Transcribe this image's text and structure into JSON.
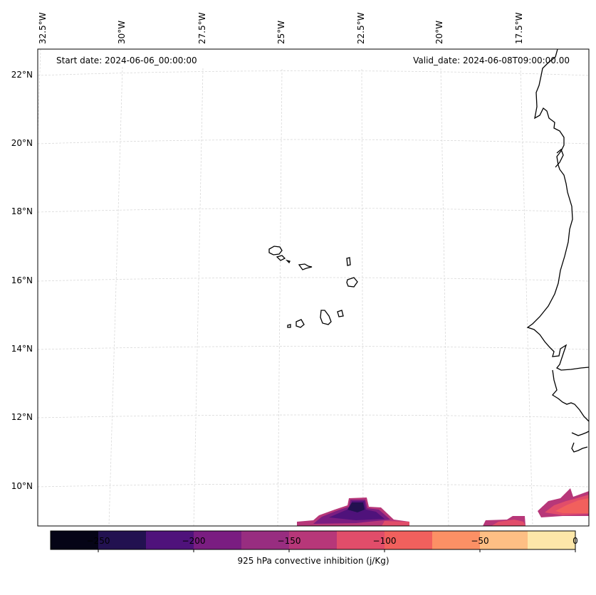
{
  "map": {
    "start_date": "Start date: 2024-06-06_00:00:00",
    "valid_date": "Valid_date: 2024-06-08T09:00:00.00",
    "lon_labels": [
      "32.5°W",
      "30°W",
      "27.5°W",
      "25°W",
      "22.5°W",
      "20°W",
      "17.5°W"
    ],
    "lat_labels": [
      "22°N",
      "20°N",
      "18°N",
      "16°N",
      "14°N",
      "12°N",
      "10°N"
    ],
    "land_line_color": "#000000",
    "grid_color": "#d9d9d9"
  },
  "colorbar": {
    "label": "925 hPa convective inhibition (j/Kg)",
    "tick_labels": [
      "−250",
      "−200",
      "−150",
      "−100",
      "−50",
      "0"
    ],
    "bins": [
      {
        "min": -275,
        "max": -250,
        "color": "#050416"
      },
      {
        "min": -250,
        "max": -225,
        "color": "#221150"
      },
      {
        "min": -225,
        "max": -200,
        "color": "#4f127b"
      },
      {
        "min": -200,
        "max": -175,
        "color": "#7a1d81"
      },
      {
        "min": -175,
        "max": -150,
        "color": "#982d80"
      },
      {
        "min": -150,
        "max": -125,
        "color": "#b73779"
      },
      {
        "min": -125,
        "max": -100,
        "color": "#e14d6a"
      },
      {
        "min": -100,
        "max": -75,
        "color": "#f1605d"
      },
      {
        "min": -75,
        "max": -50,
        "color": "#fc9065"
      },
      {
        "min": -50,
        "max": -25,
        "color": "#febf84"
      },
      {
        "min": -25,
        "max": 0,
        "color": "#fde7a9"
      }
    ]
  }
}
